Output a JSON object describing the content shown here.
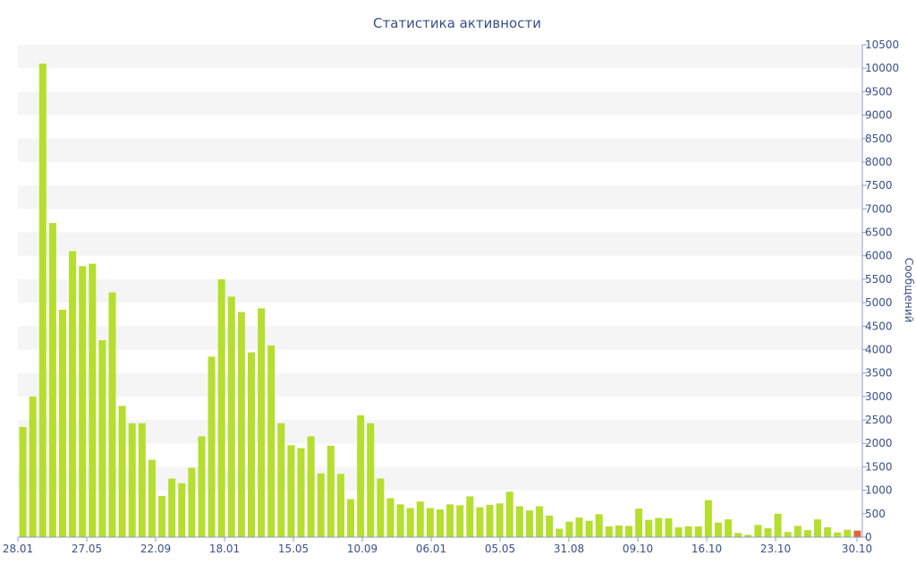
{
  "chart_data": {
    "type": "bar",
    "title": "Статистика активности",
    "xlabel": "",
    "ylabel": "Сообщений",
    "ylim": [
      0,
      10500
    ],
    "yticks": [
      0,
      500,
      1000,
      1500,
      2000,
      2500,
      3000,
      3500,
      4000,
      4500,
      5000,
      5500,
      6000,
      6500,
      7000,
      7500,
      8000,
      8500,
      9000,
      9500,
      10000,
      10500
    ],
    "xtick_labels": [
      "28.01",
      "27.05",
      "22.09",
      "18.01",
      "15.05",
      "10.09",
      "06.01",
      "05.05",
      "31.08",
      "09.10",
      "16.10",
      "23.10",
      "30.10"
    ],
    "grid": "alternating horizontal bands",
    "y_axis_position": "right",
    "colors": {
      "bar": "#b5de2e",
      "last_bar": "#e0663a",
      "text": "#3a4f8a",
      "band": "#f5f5f5",
      "axis": "#8c9fc4"
    },
    "values": [
      2350,
      3000,
      10100,
      6700,
      4850,
      6100,
      5780,
      5830,
      4200,
      5220,
      2800,
      2430,
      2430,
      1650,
      880,
      1250,
      1150,
      1480,
      2150,
      3850,
      5500,
      5130,
      4800,
      3940,
      4880,
      4090,
      2430,
      1960,
      1900,
      2150,
      1360,
      1950,
      1350,
      810,
      2600,
      2430,
      1250,
      830,
      700,
      620,
      760,
      620,
      590,
      700,
      680,
      870,
      640,
      690,
      720,
      970,
      660,
      570,
      660,
      460,
      180,
      330,
      420,
      350,
      490,
      230,
      250,
      240,
      610,
      370,
      410,
      400,
      210,
      230,
      230,
      790,
      310,
      380,
      90,
      50,
      260,
      190,
      500,
      110,
      240,
      150,
      380,
      210,
      100,
      160,
      140
    ]
  }
}
